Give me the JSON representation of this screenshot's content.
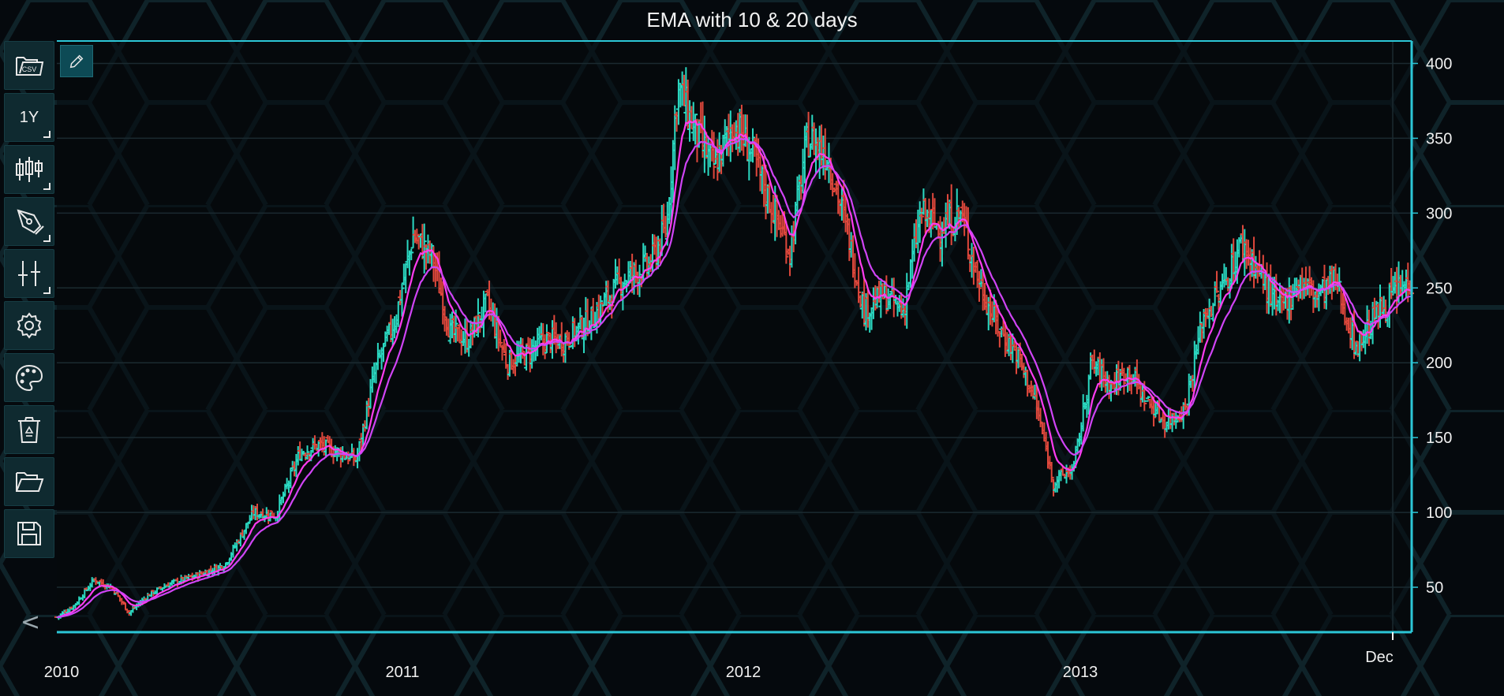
{
  "chart_data": {
    "type": "line",
    "title": "EMA with 10 & 20 days",
    "x_ticks": [
      "2010",
      "2011",
      "2012",
      "2013",
      "Dec"
    ],
    "y_ticks": [
      50,
      100,
      150,
      200,
      250,
      300,
      350,
      400
    ],
    "ylim": [
      20,
      415
    ],
    "xlim": [
      "2010-01-01",
      "2013-12-31"
    ],
    "grid": true,
    "y_axis_side": "right",
    "price_series": {
      "style": "ohlc-bars",
      "up_color": "#2bd9c2",
      "down_color": "#e0483c",
      "dates": [
        "2010-01-01",
        "2010-01-20",
        "2010-02-10",
        "2010-03-01",
        "2010-03-20",
        "2010-04-10",
        "2010-05-01",
        "2010-06-01",
        "2010-07-01",
        "2010-08-01",
        "2010-08-25",
        "2010-09-20",
        "2010-10-10",
        "2010-11-01",
        "2010-11-20",
        "2010-12-10",
        "2011-01-01",
        "2011-01-20",
        "2011-02-10",
        "2011-03-01",
        "2011-03-20",
        "2011-04-10",
        "2011-05-01",
        "2011-05-20",
        "2011-06-10",
        "2011-07-01",
        "2011-08-01",
        "2011-09-01",
        "2011-10-01",
        "2011-10-20",
        "2011-11-01",
        "2011-11-20",
        "2011-12-10",
        "2012-01-01",
        "2012-01-20",
        "2012-02-10",
        "2012-03-01",
        "2012-03-20",
        "2012-04-10",
        "2012-05-01",
        "2012-05-20",
        "2012-06-10",
        "2012-07-01",
        "2012-07-20",
        "2012-08-10",
        "2012-09-01",
        "2012-09-20",
        "2012-10-10",
        "2012-11-01",
        "2012-11-20",
        "2012-12-10",
        "2013-01-01",
        "2013-01-20",
        "2013-02-10",
        "2013-03-01",
        "2013-03-20",
        "2013-04-10",
        "2013-05-01",
        "2013-05-20",
        "2013-06-10",
        "2013-07-01",
        "2013-07-20",
        "2013-08-10",
        "2013-09-01",
        "2013-09-20",
        "2013-10-10",
        "2013-11-01",
        "2013-11-20",
        "2013-12-10",
        "2013-12-31"
      ],
      "close": [
        30,
        38,
        55,
        50,
        33,
        45,
        52,
        58,
        65,
        100,
        98,
        140,
        145,
        140,
        135,
        195,
        230,
        285,
        270,
        220,
        215,
        240,
        200,
        205,
        215,
        215,
        230,
        255,
        265,
        290,
        385,
        355,
        330,
        360,
        340,
        305,
        275,
        350,
        340,
        290,
        235,
        245,
        235,
        300,
        290,
        300,
        255,
        225,
        205,
        175,
        120,
        130,
        200,
        185,
        195,
        175,
        160,
        170,
        230,
        250,
        280,
        260,
        235,
        255,
        245,
        255,
        210,
        230,
        245,
        255
      ]
    },
    "series": [
      {
        "name": "EMA 10",
        "color": "#ff3cf0"
      },
      {
        "name": "EMA 20",
        "color": "#d044f5"
      }
    ]
  },
  "toolbar": {
    "buttons": [
      {
        "icon": "csv-folder-icon",
        "label": ""
      },
      {
        "icon": "timeframe",
        "label": "1Y"
      },
      {
        "icon": "candlestick-icon",
        "label": ""
      },
      {
        "icon": "pen-tool-icon",
        "label": ""
      },
      {
        "icon": "crosshair-icon",
        "label": ""
      },
      {
        "icon": "gear-icon",
        "label": ""
      },
      {
        "icon": "palette-icon",
        "label": ""
      },
      {
        "icon": "recycle-bin-icon",
        "label": ""
      },
      {
        "icon": "open-folder-icon",
        "label": ""
      },
      {
        "icon": "save-icon",
        "label": ""
      }
    ],
    "collapse_label": "<"
  },
  "colors": {
    "background": "#05090d",
    "grid": "#1b2a30",
    "axis": "#2cc6d6",
    "toolbar_button": "#0f2a30",
    "edit_button": "#0d4a55"
  }
}
